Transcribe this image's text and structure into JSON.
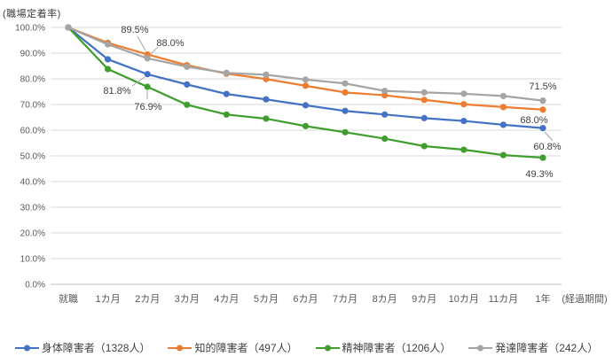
{
  "chart": {
    "y_axis_title": "(職場定着率)",
    "x_axis_title": "(経過期間)",
    "y_tick_labels": [
      "0.0%",
      "10.0%",
      "20.0%",
      "30.0%",
      "40.0%",
      "50.0%",
      "60.0%",
      "70.0%",
      "80.0%",
      "90.0%",
      "100.0%"
    ]
  },
  "chart_data": {
    "type": "line",
    "title": "",
    "xlabel": "(経過期間)",
    "ylabel": "(職場定着率)",
    "ylim": [
      0,
      100
    ],
    "grid": true,
    "legend_position": "bottom",
    "categories": [
      "就職",
      "1カ月",
      "2カ月",
      "3カ月",
      "4カ月",
      "5カ月",
      "6カ月",
      "7カ月",
      "8カ月",
      "9カ月",
      "10カ月",
      "11カ月",
      "1年"
    ],
    "series": [
      {
        "name": "身体障害者（1328人）",
        "color": "#4472C4",
        "values": [
          100.0,
          87.6,
          81.8,
          77.8,
          74.1,
          72.0,
          69.7,
          67.5,
          66.1,
          64.7,
          63.6,
          62.1,
          60.8
        ]
      },
      {
        "name": "知的障害者（497人）",
        "color": "#ED7D31",
        "values": [
          100.0,
          94.0,
          89.5,
          85.3,
          82.0,
          79.9,
          77.3,
          74.7,
          73.6,
          71.8,
          70.1,
          69.0,
          68.0
        ]
      },
      {
        "name": "精神障害者（1206人）",
        "color": "#3F9E2E",
        "values": [
          100.0,
          83.8,
          76.9,
          69.9,
          66.1,
          64.5,
          61.6,
          59.2,
          56.7,
          53.8,
          52.4,
          50.3,
          49.3
        ]
      },
      {
        "name": "発達障害者（242人）",
        "color": "#A5A5A5",
        "values": [
          100.0,
          93.4,
          88.0,
          84.7,
          82.3,
          81.6,
          79.7,
          78.2,
          75.3,
          74.7,
          74.2,
          73.3,
          71.5
        ]
      }
    ],
    "annotations": [
      {
        "series": "知的障害者",
        "point": "2カ月",
        "label": "89.5%"
      },
      {
        "series": "発達障害者",
        "point": "2カ月",
        "label": "88.0%"
      },
      {
        "series": "身体障害者",
        "point": "2カ月",
        "label": "81.8%"
      },
      {
        "series": "精神障害者",
        "point": "2カ月",
        "label": "76.9%"
      },
      {
        "series": "発達障害者",
        "point": "1年",
        "label": "71.5%"
      },
      {
        "series": "知的障害者",
        "point": "1年",
        "label": "68.0%"
      },
      {
        "series": "身体障害者",
        "point": "1年",
        "label": "60.8%"
      },
      {
        "series": "精神障害者",
        "point": "1年",
        "label": "49.3%"
      }
    ]
  }
}
